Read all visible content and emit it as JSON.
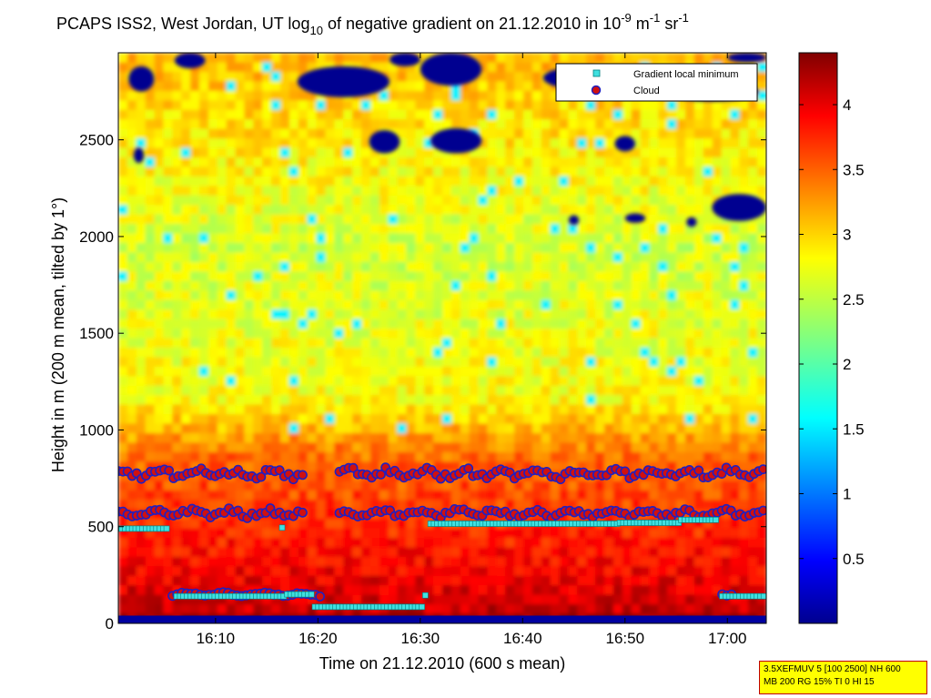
{
  "chart_data": {
    "type": "heatmap",
    "title": {
      "part1": "PCAPS ISS2, West Jordan, UT log",
      "sub1": "10",
      "part2": " of negative gradient on 21.12.2010 in 10",
      "sup1": "-9",
      "part3": " m",
      "sup2": "-1",
      "part4": " sr",
      "sup3": "-1"
    },
    "xlabel": "Time on 21.12.2010 (600 s mean)",
    "ylabel": "Height in m (200 m mean, tilted by 1°)",
    "x_ticks": [
      "16:10",
      "16:20",
      "16:30",
      "16:40",
      "16:50",
      "17:00"
    ],
    "x_tick_minutes": [
      10,
      20,
      30,
      40,
      50,
      60
    ],
    "xlim_minutes": [
      0.5,
      63.8
    ],
    "y_ticks": [
      0,
      500,
      1000,
      1500,
      2000,
      2500
    ],
    "ylim": [
      0,
      2950
    ],
    "colorbar": {
      "ticks": [
        "0.5",
        "1",
        "1.5",
        "2",
        "2.5",
        "3",
        "3.5",
        "4"
      ],
      "tick_values": [
        0.5,
        1,
        1.5,
        2,
        2.5,
        3,
        3.5,
        4
      ],
      "range": [
        0,
        4.4
      ],
      "colormap": "jet"
    },
    "legend": {
      "placement": "top-right",
      "entries": [
        "Gradient local minimum",
        "Cloud"
      ]
    },
    "series": [
      {
        "name": "Gradient local minimum",
        "marker": "square",
        "color": "#40e0e0",
        "segments": [
          {
            "x_start": 0.5,
            "x_end": 5.5,
            "y": 490
          },
          {
            "x_start": 6.2,
            "x_end": 17.0,
            "y": 140
          },
          {
            "x_start": 17.0,
            "x_end": 19.5,
            "y": 150
          },
          {
            "x_start": 19.7,
            "x_end": 30.2,
            "y": 85
          },
          {
            "x_start": 31.0,
            "x_end": 49.5,
            "y": 515
          },
          {
            "x_start": 49.5,
            "x_end": 55.5,
            "y": 520
          },
          {
            "x_start": 55.5,
            "x_end": 59.0,
            "y": 535
          },
          {
            "x_start": 59.5,
            "x_end": 63.8,
            "y": 140
          }
        ],
        "points": [
          {
            "x": 16.5,
            "y": 495
          },
          {
            "x": 30.5,
            "y": 145
          }
        ]
      },
      {
        "name": "Cloud",
        "marker": "circle",
        "color": "#d01010",
        "edge_color": "#2020c0",
        "layers": [
          {
            "x_start": 0.5,
            "x_end": 63.8,
            "base_y": 775,
            "amplitude": 30
          },
          {
            "x_start": 0.5,
            "x_end": 63.8,
            "base_y": 570,
            "amplitude": 25
          },
          {
            "x_start": 5.8,
            "x_end": 20.5,
            "base_y": 150,
            "amplitude": 10
          },
          {
            "x_start": 59.5,
            "x_end": 60.5,
            "base_y": 150,
            "amplitude": 5
          }
        ],
        "gaps_minutes": [
          [
            18.5,
            22.0
          ]
        ]
      }
    ],
    "field_description_levels": [
      {
        "y_range": [
          0,
          300
        ],
        "value": 4.3
      },
      {
        "y_range": [
          300,
          900
        ],
        "value": 3.9
      },
      {
        "y_range": [
          900,
          1200
        ],
        "value": 3.1
      },
      {
        "y_range": [
          1200,
          2000
        ],
        "value": 2.6
      },
      {
        "y_range": [
          2000,
          2950
        ],
        "value": 2.9
      }
    ]
  },
  "info_box": {
    "line1": "3.5XEFMUV 5 [100 2500] NH 600",
    "line2": "MB 200 RG 15% TI 0 HI 15"
  }
}
